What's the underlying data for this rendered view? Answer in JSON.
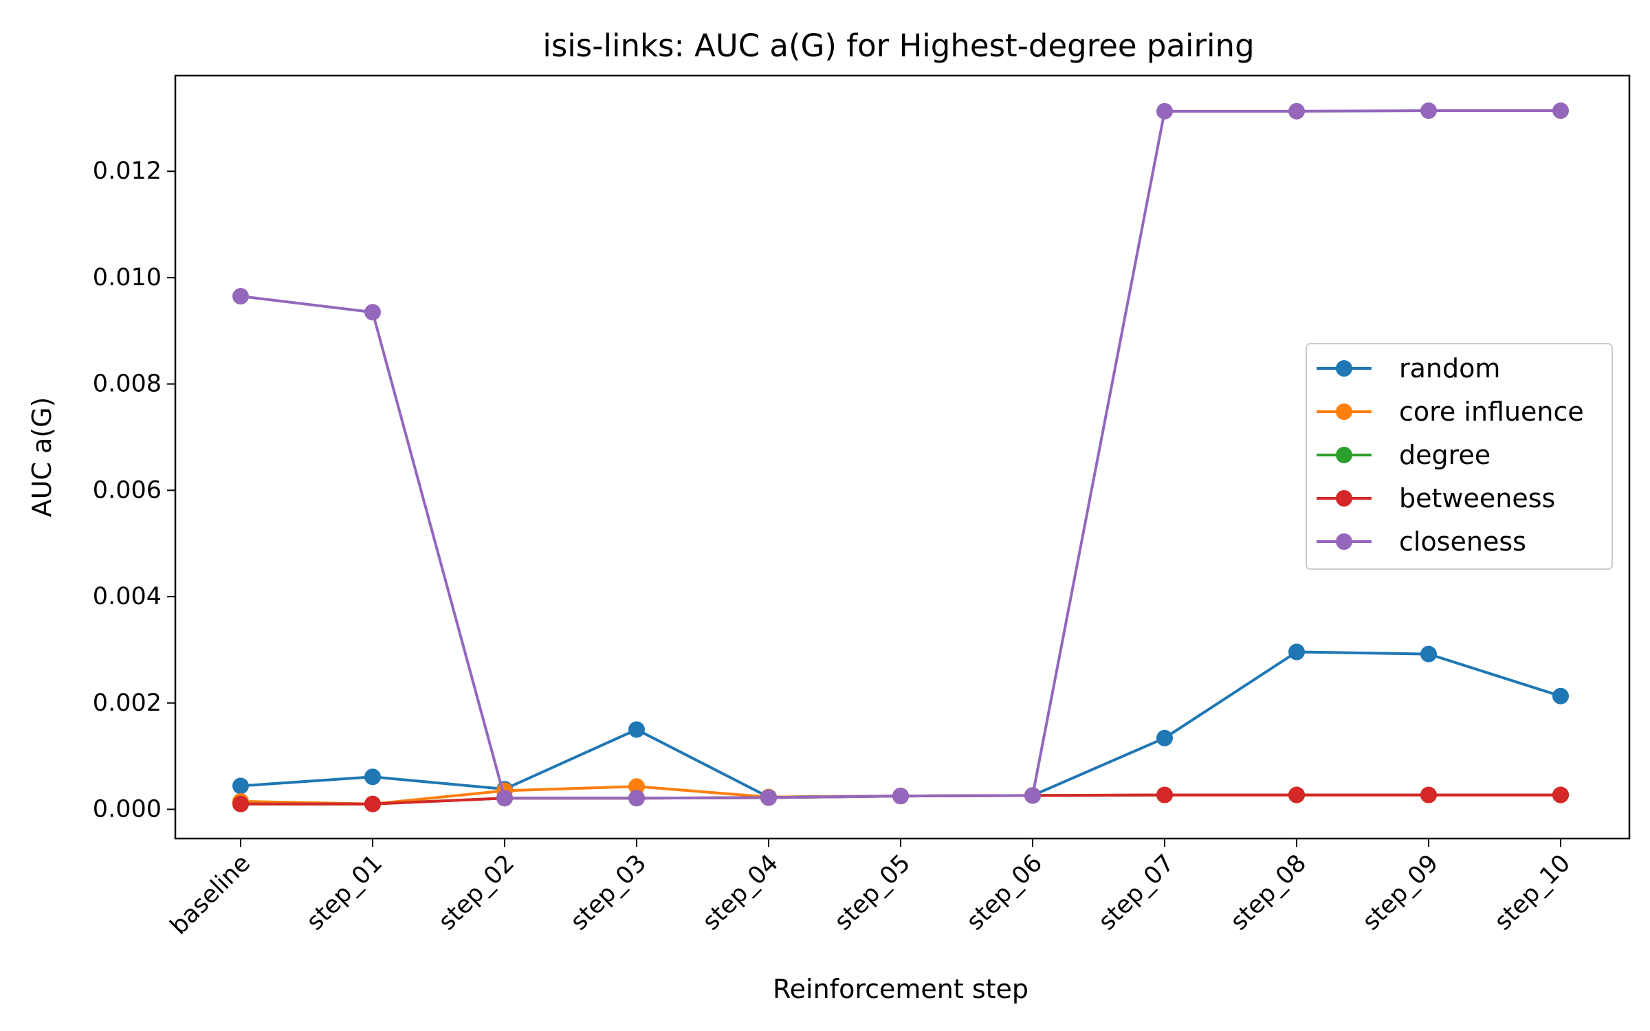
{
  "chart_data": {
    "type": "line",
    "title": "isis-links: AUC a(G) for Highest-degree pairing",
    "xlabel": "Reinforcement step",
    "ylabel": "AUC a(G)",
    "categories": [
      "baseline",
      "step_01",
      "step_02",
      "step_03",
      "step_04",
      "step_05",
      "step_06",
      "step_07",
      "step_08",
      "step_09",
      "step_10"
    ],
    "ylim": [
      -0.00055,
      0.0138
    ],
    "yticks": [
      "0.000",
      "0.002",
      "0.004",
      "0.006",
      "0.008",
      "0.010",
      "0.012"
    ],
    "ytick_values": [
      0,
      0.002,
      0.004,
      0.006,
      0.008,
      0.01,
      0.012
    ],
    "grid": false,
    "legend_position": "center-right",
    "series": [
      {
        "name": "random",
        "color": "#1f77b4",
        "values": [
          0.00044,
          0.00061,
          0.00038,
          0.0015,
          0.00023,
          0.00025,
          0.00026,
          0.00134,
          0.00296,
          0.00292,
          0.00213
        ]
      },
      {
        "name": "core influence",
        "color": "#ff7f0e",
        "values": [
          0.00015,
          0.0001,
          0.00035,
          0.00043,
          0.00023,
          0.00025,
          0.00026,
          0.00027,
          0.00027,
          0.00027,
          0.00027
        ]
      },
      {
        "name": "degree",
        "color": "#2ca02c",
        "values": [
          0.0001,
          0.0001,
          0.00021,
          0.00021,
          0.00022,
          0.00025,
          0.00026,
          0.00027,
          0.00027,
          0.00027,
          0.00027
        ]
      },
      {
        "name": "betweeness",
        "color": "#d62728",
        "values": [
          0.0001,
          0.0001,
          0.00021,
          0.00021,
          0.00022,
          0.00025,
          0.00026,
          0.00027,
          0.00027,
          0.00027,
          0.00027
        ]
      },
      {
        "name": "closeness",
        "color": "#9467bd",
        "values": [
          0.00965,
          0.00935,
          0.00021,
          0.00021,
          0.00022,
          0.00025,
          0.00026,
          0.01313,
          0.01313,
          0.01314,
          0.01314
        ]
      }
    ]
  }
}
